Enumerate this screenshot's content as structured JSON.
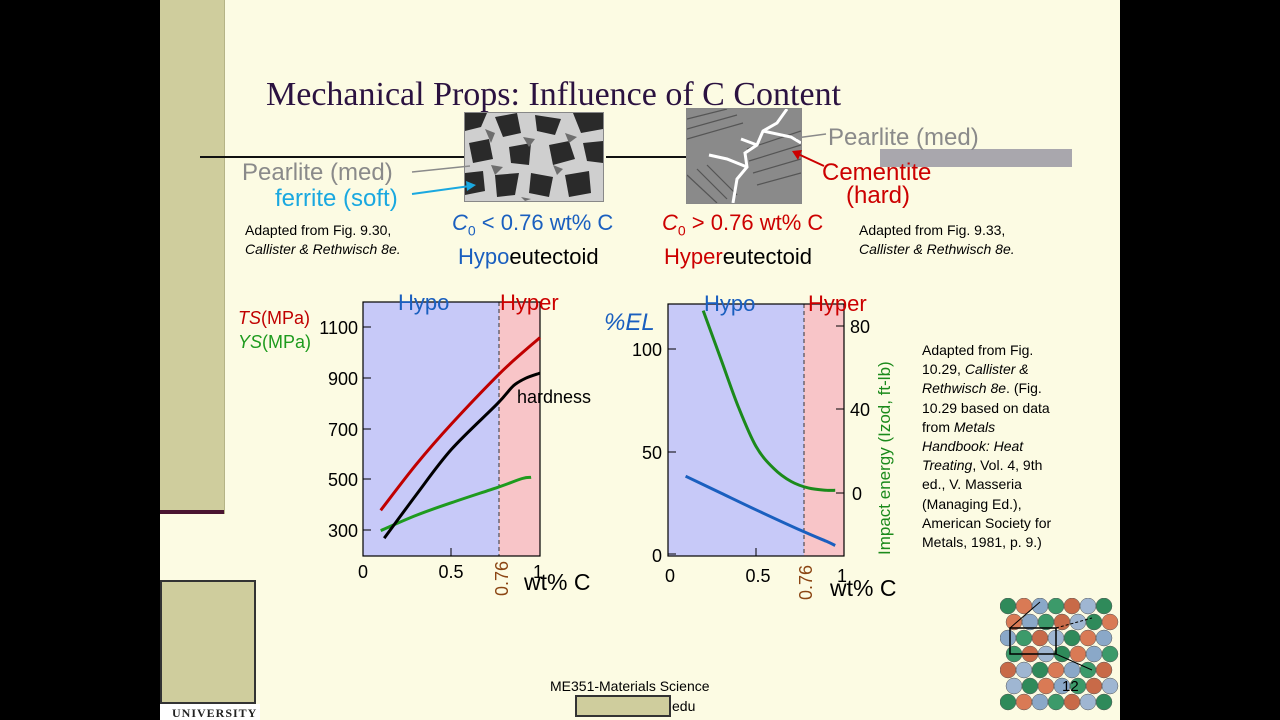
{
  "slide": {
    "title": "Mechanical Props: Influence of C Content",
    "logo_text": "UNIVERSITY",
    "footer_course": "ME351-Materials Science",
    "footer_email_tail": "edu",
    "page_number": "12"
  },
  "top_left": {
    "pearlite": "Pearlite (med)",
    "ferrite": "ferrite (soft)",
    "c_symbol": "C",
    "c_sub": "0",
    "c_cond": " < 0.76 wt% C",
    "prefix": "Hypo",
    "suffix": "eutectoid",
    "adapted_line1": "Adapted from Fig. 9.30,",
    "adapted_line2": "Callister & Rethwisch 8e."
  },
  "top_right": {
    "pearlite": "Pearlite (med)",
    "cementite": "Cementite",
    "hard": "(hard)",
    "c_symbol": "C",
    "c_sub": "0",
    "c_cond": " > 0.76 wt% C",
    "prefix": "Hyper",
    "suffix": "eutectoid",
    "adapted_line1": "Adapted from Fig. 9.33,",
    "adapted_line2": "Callister & Rethwisch 8e."
  },
  "right_citation": {
    "l1": "Adapted from Fig.",
    "l2a": "10.29, ",
    "l2b": "Callister &",
    "l3a": "Rethwisch 8e",
    "l3b": ". (Fig.",
    "l4": "10.29 based on data",
    "l5": "from ",
    "l5b": "Metals",
    "l6": "Handbook:  Heat",
    "l7a": "Treating",
    "l7b": ", Vol. 4, 9th",
    "l8": "ed., V. Masseria",
    "l9": "(Managing Ed.),",
    "l10": "American Society for",
    "l11": "Metals, 1981, p. 9.)"
  },
  "colors": {
    "hypo_bg": "#c7c9f8",
    "hyper_bg": "#f8c5c8",
    "ts": "#c00000",
    "ys": "#1e9b1e",
    "hardness": "#000000",
    "el": "#1a5fbf",
    "impact": "#1b8a1b",
    "ferrite": "#1aa8e0",
    "cementite": "#cc0000",
    "pearlite": "#8a8a8a"
  },
  "chart_data": [
    {
      "type": "line",
      "region_labels": [
        "Hypo",
        "Hyper"
      ],
      "y_axis_labels": {
        "ts": "TS",
        "ys": "YS",
        "unit": "(MPa)"
      },
      "xlabel": "wt% C",
      "x_ticks": [
        "0",
        "0.5",
        "1"
      ],
      "eutectoid_label": "0.76",
      "eutectoid_x": 0.76,
      "xlim": [
        0,
        1
      ],
      "ylim": [
        200,
        1200
      ],
      "y_ticks": [
        "1100",
        "900",
        "700",
        "500",
        "300"
      ],
      "annotation": "hardness",
      "series": [
        {
          "name": "TS",
          "x": [
            0.1,
            0.3,
            0.5,
            0.76,
            0.9,
            1.0
          ],
          "y": [
            380,
            560,
            720,
            910,
            1000,
            1060
          ]
        },
        {
          "name": "YS",
          "x": [
            0.1,
            0.3,
            0.5,
            0.76,
            0.9,
            0.95
          ],
          "y": [
            300,
            360,
            410,
            470,
            505,
            510
          ]
        },
        {
          "name": "hardness",
          "x": [
            0.12,
            0.3,
            0.5,
            0.76,
            0.85,
            0.92,
            1.0
          ],
          "y": [
            270,
            440,
            620,
            800,
            870,
            900,
            920
          ]
        }
      ]
    },
    {
      "type": "line",
      "region_labels": [
        "Hypo",
        "Hyper"
      ],
      "ylabel_left": "%EL",
      "ylabel_right": "Impact energy (Izod, ft-lb)",
      "xlabel": "wt% C",
      "x_ticks": [
        "0",
        "0.5",
        "1"
      ],
      "eutectoid_label": "0.76",
      "eutectoid_x": 0.76,
      "xlim": [
        0,
        1
      ],
      "ylim_left": [
        0,
        120
      ],
      "ylim_right": [
        -30,
        85
      ],
      "y_ticks_left": [
        "100",
        "50",
        "0"
      ],
      "y_ticks_right": [
        "80",
        "40",
        "0"
      ],
      "series": [
        {
          "name": "%EL",
          "axis": "left",
          "x": [
            0.1,
            0.3,
            0.5,
            0.76,
            0.9,
            0.95
          ],
          "y": [
            38,
            30,
            22,
            12,
            7,
            5
          ]
        },
        {
          "name": "Impact energy",
          "axis": "right",
          "x": [
            0.2,
            0.3,
            0.4,
            0.5,
            0.6,
            0.7,
            0.8,
            0.9,
            0.95
          ],
          "y": [
            82,
            60,
            38,
            20,
            10,
            4,
            1,
            0,
            0
          ]
        }
      ]
    }
  ]
}
